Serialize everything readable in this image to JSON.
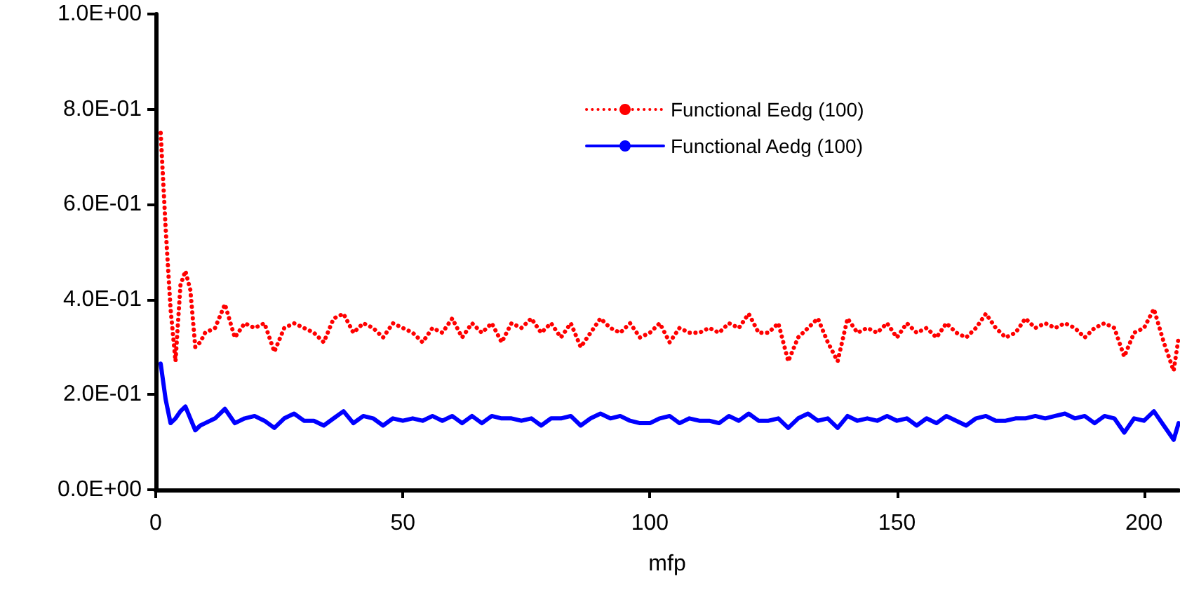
{
  "chart_data": {
    "type": "line",
    "xlabel": "mfp",
    "x": [
      1,
      2,
      3,
      4,
      5,
      6,
      7,
      8,
      9,
      10,
      12,
      14,
      16,
      18,
      20,
      22,
      24,
      26,
      28,
      30,
      32,
      34,
      36,
      38,
      40,
      42,
      44,
      46,
      48,
      50,
      52,
      54,
      56,
      58,
      60,
      62,
      64,
      66,
      68,
      70,
      72,
      74,
      76,
      78,
      80,
      82,
      84,
      86,
      88,
      90,
      92,
      94,
      96,
      98,
      100,
      102,
      104,
      106,
      108,
      110,
      112,
      114,
      116,
      118,
      120,
      122,
      124,
      126,
      128,
      130,
      132,
      134,
      136,
      138,
      140,
      142,
      144,
      146,
      148,
      150,
      152,
      154,
      156,
      158,
      160,
      162,
      164,
      166,
      168,
      170,
      172,
      174,
      176,
      178,
      180,
      182,
      184,
      186,
      188,
      190,
      192,
      194,
      196,
      198,
      200,
      202,
      204,
      206,
      207
    ],
    "series": [
      {
        "name": "Functional Eedg (100)",
        "color": "#ff0000",
        "line_style": "dotted",
        "values": [
          0.75,
          0.55,
          0.38,
          0.27,
          0.43,
          0.46,
          0.42,
          0.3,
          0.31,
          0.33,
          0.34,
          0.39,
          0.32,
          0.35,
          0.34,
          0.35,
          0.29,
          0.34,
          0.35,
          0.34,
          0.33,
          0.31,
          0.36,
          0.37,
          0.33,
          0.35,
          0.34,
          0.32,
          0.35,
          0.34,
          0.33,
          0.31,
          0.34,
          0.33,
          0.36,
          0.32,
          0.35,
          0.33,
          0.35,
          0.31,
          0.35,
          0.34,
          0.36,
          0.33,
          0.35,
          0.32,
          0.35,
          0.3,
          0.33,
          0.36,
          0.34,
          0.33,
          0.35,
          0.32,
          0.33,
          0.35,
          0.31,
          0.34,
          0.33,
          0.33,
          0.34,
          0.33,
          0.35,
          0.34,
          0.37,
          0.33,
          0.33,
          0.35,
          0.27,
          0.32,
          0.34,
          0.36,
          0.31,
          0.27,
          0.36,
          0.33,
          0.34,
          0.33,
          0.35,
          0.32,
          0.35,
          0.33,
          0.34,
          0.32,
          0.35,
          0.33,
          0.32,
          0.34,
          0.37,
          0.34,
          0.32,
          0.33,
          0.36,
          0.34,
          0.35,
          0.34,
          0.35,
          0.34,
          0.32,
          0.34,
          0.35,
          0.34,
          0.28,
          0.33,
          0.34,
          0.38,
          0.31,
          0.25,
          0.32
        ]
      },
      {
        "name": "Functional Aedg (100)",
        "color": "#0000ff",
        "line_style": "solid",
        "values": [
          0.265,
          0.19,
          0.14,
          0.15,
          0.165,
          0.175,
          0.15,
          0.125,
          0.135,
          0.14,
          0.15,
          0.17,
          0.14,
          0.15,
          0.155,
          0.145,
          0.13,
          0.15,
          0.16,
          0.145,
          0.145,
          0.135,
          0.15,
          0.165,
          0.14,
          0.155,
          0.15,
          0.135,
          0.15,
          0.145,
          0.15,
          0.145,
          0.155,
          0.145,
          0.155,
          0.14,
          0.155,
          0.14,
          0.155,
          0.15,
          0.15,
          0.145,
          0.15,
          0.135,
          0.15,
          0.15,
          0.155,
          0.135,
          0.15,
          0.16,
          0.15,
          0.155,
          0.145,
          0.14,
          0.14,
          0.15,
          0.155,
          0.14,
          0.15,
          0.145,
          0.145,
          0.14,
          0.155,
          0.145,
          0.16,
          0.145,
          0.145,
          0.15,
          0.13,
          0.15,
          0.16,
          0.145,
          0.15,
          0.13,
          0.155,
          0.145,
          0.15,
          0.145,
          0.155,
          0.145,
          0.15,
          0.135,
          0.15,
          0.14,
          0.155,
          0.145,
          0.135,
          0.15,
          0.155,
          0.145,
          0.145,
          0.15,
          0.15,
          0.155,
          0.15,
          0.155,
          0.16,
          0.15,
          0.155,
          0.14,
          0.155,
          0.15,
          0.12,
          0.15,
          0.145,
          0.165,
          0.135,
          0.105,
          0.14
        ]
      }
    ],
    "xlim": [
      0,
      207
    ],
    "xticks": [
      0,
      50,
      100,
      150,
      200
    ],
    "ylim": [
      0,
      1
    ],
    "yticks": [
      {
        "value": 0,
        "label": "0.0E+00"
      },
      {
        "value": 0.2,
        "label": "2.0E-01"
      },
      {
        "value": 0.4,
        "label": "4.0E-01"
      },
      {
        "value": 0.6,
        "label": "6.0E-01"
      },
      {
        "value": 0.8,
        "label": "8.0E-01"
      },
      {
        "value": 1,
        "label": "1.0E+00"
      }
    ],
    "grid": false,
    "legend": "top right",
    "marker": "none"
  }
}
